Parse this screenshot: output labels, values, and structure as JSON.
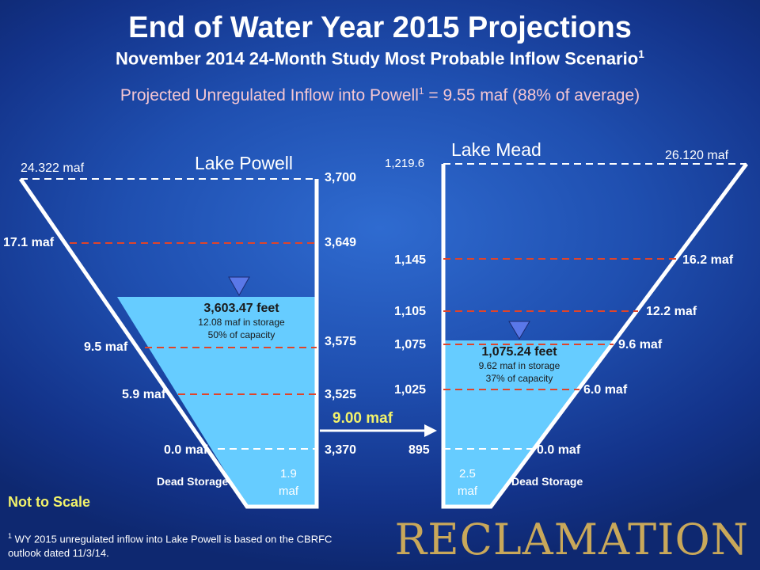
{
  "title": "End of Water Year 2015 Projections",
  "subtitle": "November 2014 24-Month Study Most Probable Inflow Scenario",
  "subtitle_footnote_mark": "1",
  "inflow_text_pre": "Projected Unregulated Inflow into Powell",
  "inflow_footnote_mark": "1",
  "inflow_text_post": " = 9.55 maf (88% of average)",
  "colors": {
    "water": "#66ccff",
    "dash_red": "#e0442a",
    "dash_white": "#ffffff",
    "marker": "#5a78e8"
  },
  "powell": {
    "name": "Lake Powell",
    "top_storage": "24.322 maf",
    "levels": [
      {
        "storage": "17.1 maf",
        "elevation": "3,649"
      },
      {
        "storage": "9.5 maf",
        "elevation": "3,575"
      },
      {
        "storage": "5.9 maf",
        "elevation": "3,525"
      },
      {
        "storage": "0.0 maf",
        "elevation": "3,370"
      }
    ],
    "top_elevation": "3,700",
    "current": {
      "elevation": "3,603.47 feet",
      "storage": "12.08 maf in storage",
      "capacity": "50% of capacity"
    },
    "dead_storage_label": "Dead Storage",
    "dead_storage_value": "1.9",
    "dead_storage_unit": "maf"
  },
  "mead": {
    "name": "Lake Mead",
    "top_storage": "26.120 maf",
    "top_elevation": "1,219.6",
    "levels": [
      {
        "storage": "16.2 maf",
        "elevation": "1,145"
      },
      {
        "storage": "12.2 maf",
        "elevation": "1,105"
      },
      {
        "storage": "9.6 maf",
        "elevation": "1,075"
      },
      {
        "storage": "6.0 maf",
        "elevation": "1,025"
      },
      {
        "storage": "0.0 maf",
        "elevation": "895"
      }
    ],
    "current": {
      "elevation": "1,075.24 feet",
      "storage": "9.62 maf in storage",
      "capacity": "37% of capacity"
    },
    "dead_storage_label": "Dead Storage",
    "dead_storage_value": "2.5",
    "dead_storage_unit": "maf"
  },
  "transfer": "9.00 maf",
  "not_to_scale": "Not to Scale",
  "footnote_mark": "1",
  "footnote_text": " WY 2015 unregulated inflow into Lake Powell is based on the CBRFC outlook dated 11/3/14.",
  "logo": "RECLAMATION"
}
